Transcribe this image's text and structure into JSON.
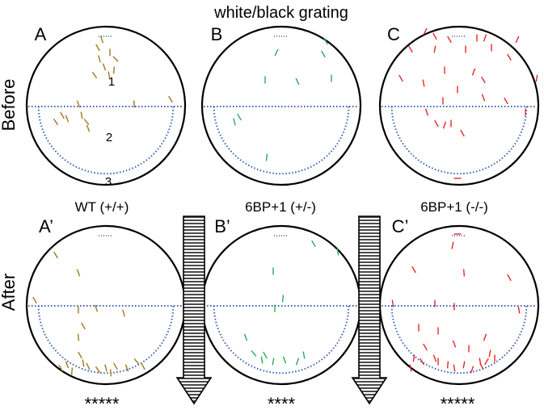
{
  "figure": {
    "title": "white/black grating",
    "row_labels": {
      "before": "Before",
      "after": "After"
    },
    "panel_letters": [
      "A",
      "B",
      "C",
      "A’",
      "B’",
      "C’"
    ],
    "genotype_labels": [
      "WT (+/+)",
      "6BP+1 (+/-)",
      "6BP+1 (-/-)"
    ],
    "zone_labels": [
      "1",
      "2",
      "3"
    ],
    "significance": [
      "*****",
      "****",
      "*****"
    ]
  },
  "colors": {
    "wt": "#a07a1e",
    "het": "#2aaa5a",
    "hom": "#e8262a",
    "dotted_line": "#3a62b0",
    "arrow_stripes": "#555555"
  },
  "icons": [
    "down-arrow-striped-icon"
  ]
}
